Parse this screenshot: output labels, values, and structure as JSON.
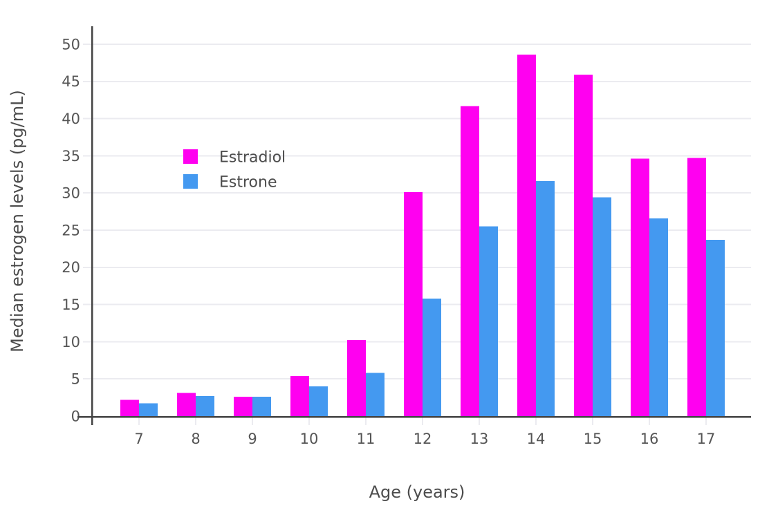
{
  "chart_data": {
    "type": "bar",
    "title": "",
    "xlabel": "Age (years)",
    "ylabel": "Median estrogen levels (pg/mL)",
    "categories": [
      "7",
      "8",
      "9",
      "10",
      "11",
      "12",
      "13",
      "14",
      "15",
      "16",
      "17"
    ],
    "series": [
      {
        "name": "Estradiol",
        "color": "#ff00f0",
        "values": [
          2.2,
          3.1,
          2.6,
          5.4,
          10.2,
          30.1,
          41.7,
          48.6,
          45.9,
          34.6,
          34.7
        ]
      },
      {
        "name": "Estrone",
        "color": "#4499f0",
        "values": [
          1.7,
          2.7,
          2.6,
          4.0,
          5.8,
          15.8,
          25.5,
          31.6,
          29.4,
          26.6,
          23.7
        ]
      }
    ],
    "ylim": [
      0,
      50
    ],
    "ytick_step": 5,
    "yticks": [
      "0",
      "5",
      "10",
      "15",
      "20",
      "25",
      "30",
      "35",
      "40",
      "45",
      "50"
    ],
    "grid": true,
    "legend_position": "inside-top-left",
    "colors": {
      "axis_line": "#444444",
      "tick_text": "#555555",
      "title_text": "#4c4c4c",
      "grid": "#ebebf0",
      "background": "#ffffff",
      "estradiol": "#ff00f0",
      "estrone": "#4499f0"
    }
  }
}
